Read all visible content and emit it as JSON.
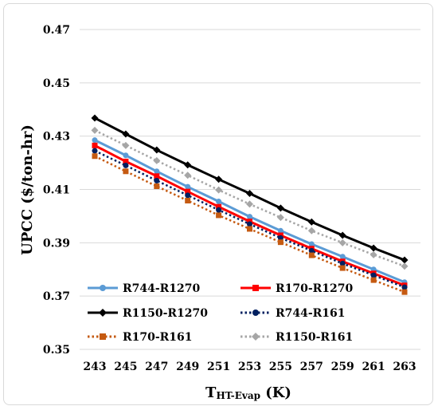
{
  "chart_data": {
    "type": "line",
    "title": "",
    "xlabel_main": "T",
    "xlabel_sub": "HT-Evap",
    "xlabel_unit": " (K)",
    "ylabel": "UPCC ($/ton-hr)",
    "x": [
      243,
      245,
      247,
      249,
      251,
      253,
      255,
      257,
      259,
      261,
      263
    ],
    "ylim": [
      0.35,
      0.47
    ],
    "yticks": [
      "0.35",
      "0.37",
      "0.39",
      "0.41",
      "0.43",
      "0.45",
      "0.47"
    ],
    "grid": true,
    "legend_position": "bottom-inside",
    "series": [
      {
        "name": "R744-R1270",
        "color": "#5b9bd5",
        "dash": "solid",
        "marker": "circle",
        "values": [
          0.4285,
          0.4228,
          0.4168,
          0.411,
          0.4055,
          0.3998,
          0.3945,
          0.3895,
          0.3848,
          0.38,
          0.3752
        ]
      },
      {
        "name": "R170-R1270",
        "color": "#ff0000",
        "dash": "solid",
        "marker": "square",
        "values": [
          0.4265,
          0.4205,
          0.415,
          0.4092,
          0.4035,
          0.398,
          0.3928,
          0.3878,
          0.383,
          0.3785,
          0.374
        ]
      },
      {
        "name": "R1150-R1270",
        "color": "#000000",
        "dash": "solid",
        "marker": "diamond",
        "values": [
          0.4368,
          0.4308,
          0.4248,
          0.4192,
          0.4138,
          0.4085,
          0.403,
          0.3978,
          0.3928,
          0.388,
          0.3835
        ]
      },
      {
        "name": "R744-R161",
        "color": "#002060",
        "dash": "dotted",
        "marker": "circle",
        "values": [
          0.4245,
          0.419,
          0.4133,
          0.4078,
          0.4023,
          0.397,
          0.3918,
          0.387,
          0.3822,
          0.3778,
          0.3733
        ]
      },
      {
        "name": "R170-R161",
        "color": "#c55a11",
        "dash": "dotted",
        "marker": "square",
        "values": [
          0.4225,
          0.4168,
          0.4112,
          0.4058,
          0.4003,
          0.3952,
          0.3902,
          0.3853,
          0.3805,
          0.376,
          0.3715
        ]
      },
      {
        "name": "R1150-R161",
        "color": "#a6a6a6",
        "dash": "dotted",
        "marker": "diamond",
        "values": [
          0.4322,
          0.4265,
          0.4208,
          0.4153,
          0.4098,
          0.4045,
          0.3995,
          0.3945,
          0.39,
          0.3855,
          0.3812
        ]
      }
    ]
  }
}
